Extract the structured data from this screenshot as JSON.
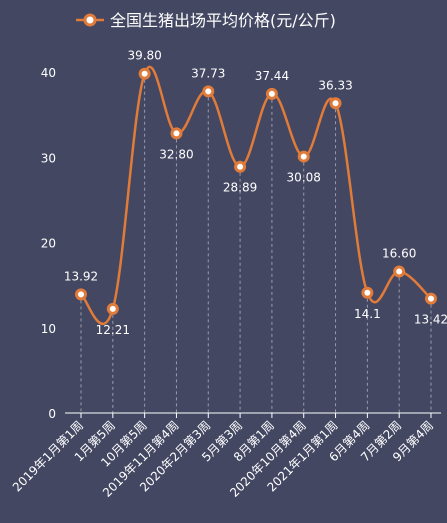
{
  "chart_data": {
    "type": "line",
    "smooth": true,
    "title": "",
    "legend": {
      "position": "top-center",
      "label": "全国生猪出场平均价格(元/公斤)"
    },
    "xlabel": "",
    "ylabel": "",
    "ylim": [
      0,
      40
    ],
    "yticks": [
      0,
      10,
      20,
      30,
      40
    ],
    "grid": {
      "horizontal": false,
      "vertical_dashed_droplines": true
    },
    "categories": [
      "2019年1月第1周",
      "1月第5周",
      "10月第5周",
      "2019年11月第4周",
      "2020年2月第3周",
      "5月第3周",
      "8月第1周",
      "2020年10月第4周",
      "2021年1月第1周",
      "6月第4周",
      "7月第2周",
      "9月第4周"
    ],
    "series": [
      {
        "name": "全国生猪出场平均价格(元/公斤)",
        "values": [
          13.92,
          12.21,
          39.8,
          32.8,
          37.73,
          28.89,
          37.44,
          30.08,
          36.33,
          14.1,
          16.6,
          13.42
        ],
        "labels": [
          "13.92",
          "12.21",
          "39.80",
          "32.80",
          "37.73",
          "28.89",
          "37.44",
          "30.08",
          "36.33",
          "14.1",
          "16.60",
          "13.42"
        ],
        "label_position": [
          "above",
          "below",
          "above",
          "below",
          "above",
          "below",
          "above",
          "below",
          "above",
          "below",
          "above",
          "below"
        ],
        "color": "#e07b39",
        "marker_fill": "#ffffff"
      }
    ]
  },
  "colors": {
    "background": "#434762",
    "text": "#ffffff",
    "axis": "#ffffff",
    "dropline": "#9a9cab"
  }
}
